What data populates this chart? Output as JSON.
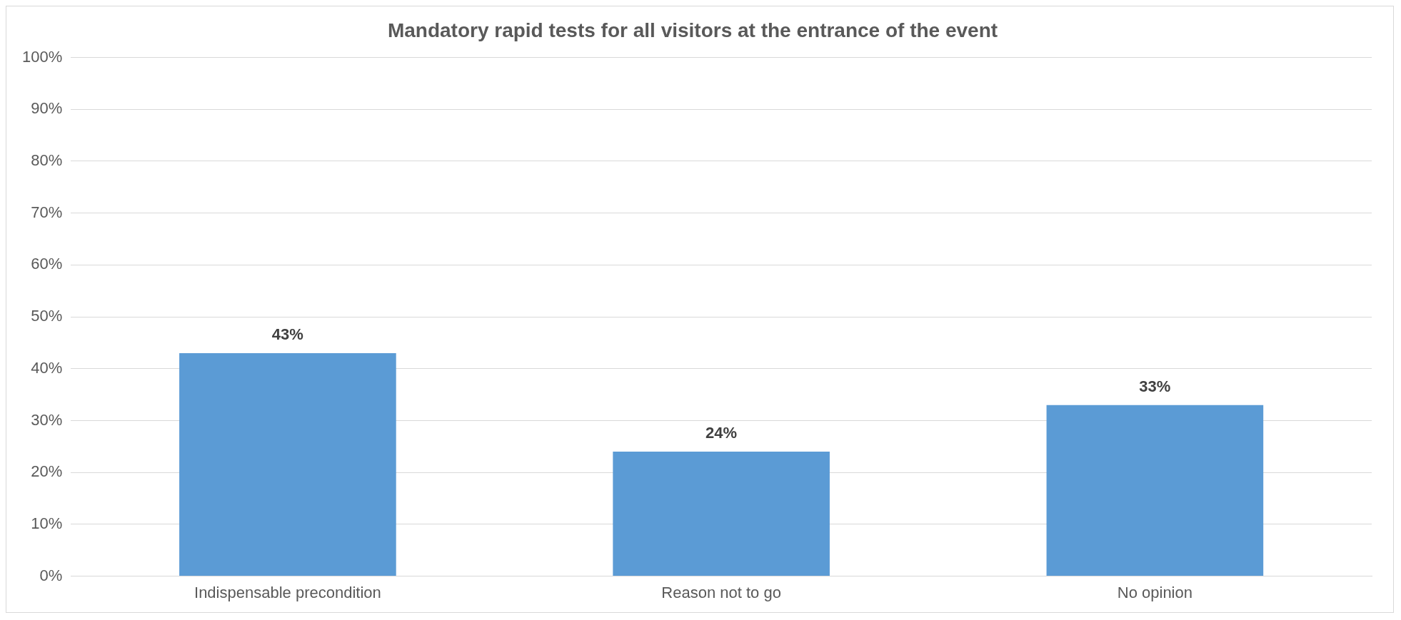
{
  "chart_data": {
    "type": "bar",
    "title": "Mandatory rapid tests for all visitors at the entrance of the event",
    "categories": [
      "Indispensable precondition",
      "Reason not to go",
      "No opinion"
    ],
    "values": [
      43,
      24,
      33
    ],
    "value_labels": [
      "43%",
      "24%",
      "33%"
    ],
    "color": "#5b9bd5",
    "ylim": [
      0,
      100
    ],
    "yticks": [
      {
        "value": 0,
        "label": "0%"
      },
      {
        "value": 10,
        "label": "10%"
      },
      {
        "value": 20,
        "label": "20%"
      },
      {
        "value": 30,
        "label": "30%"
      },
      {
        "value": 40,
        "label": "40%"
      },
      {
        "value": 50,
        "label": "50%"
      },
      {
        "value": 60,
        "label": "60%"
      },
      {
        "value": 70,
        "label": "70%"
      },
      {
        "value": 80,
        "label": "80%"
      },
      {
        "value": 90,
        "label": "90%"
      },
      {
        "value": 100,
        "label": "100%"
      }
    ],
    "grid": "y",
    "legend": false
  }
}
